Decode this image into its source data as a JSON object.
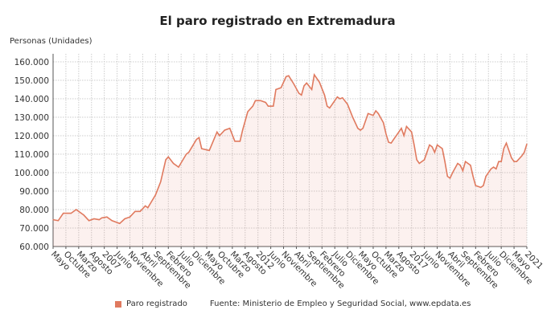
{
  "chart_data": {
    "type": "area",
    "title": "El paro registrado en Extremadura",
    "ylabel": "Personas (Unidades)",
    "xlabel": "",
    "ylim": [
      60000,
      160000
    ],
    "yticks": [
      "60.000",
      "70.000",
      "80.000",
      "90.000",
      "100.000",
      "110.000",
      "120.000",
      "130.000",
      "140.000",
      "150.000",
      "160.000"
    ],
    "xlim": [
      "2005-05",
      "2020-10"
    ],
    "xticks": [
      "Mayo",
      "Octubre",
      "Marzo",
      "Agosto",
      "2007",
      "Junio",
      "Noviembre",
      "Abril",
      "Septiembre",
      "Febrero",
      "Julio",
      "Diciembre",
      "Mayo",
      "Octubre",
      "Marzo",
      "Agosto",
      "2012",
      "Junio",
      "Noviembre",
      "Abril",
      "Septiembre",
      "Febrero",
      "Julio",
      "Diciembre",
      "Mayo",
      "Octubre",
      "Marzo",
      "Agosto",
      "2017",
      "Junio",
      "Noviembre",
      "Abril",
      "Septiembre",
      "Febrero",
      "Julio",
      "Diciembre",
      "Mayo",
      "2021"
    ],
    "grid": true,
    "legend_position": "bottom",
    "series": [
      {
        "name": "Paro registrado",
        "color": "#e07a5f",
        "points": [
          [
            "2005-05",
            74500
          ],
          [
            "2005-07",
            74000
          ],
          [
            "2005-09",
            78000
          ],
          [
            "2005-12",
            78000
          ],
          [
            "2006-02",
            80000
          ],
          [
            "2006-05",
            77000
          ],
          [
            "2006-07",
            74000
          ],
          [
            "2006-09",
            75000
          ],
          [
            "2006-11",
            74500
          ],
          [
            "2006-12",
            75500
          ],
          [
            "2007-02",
            76000
          ],
          [
            "2007-04",
            74000
          ],
          [
            "2007-07",
            72500
          ],
          [
            "2007-09",
            75000
          ],
          [
            "2007-11",
            76000
          ],
          [
            "2008-01",
            79000
          ],
          [
            "2008-03",
            79000
          ],
          [
            "2008-05",
            82000
          ],
          [
            "2008-06",
            81000
          ],
          [
            "2008-09",
            88000
          ],
          [
            "2008-11",
            95000
          ],
          [
            "2009-01",
            107000
          ],
          [
            "2009-02",
            108500
          ],
          [
            "2009-04",
            105000
          ],
          [
            "2009-06",
            103000
          ],
          [
            "2009-09",
            110000
          ],
          [
            "2009-10",
            111000
          ],
          [
            "2010-01",
            118000
          ],
          [
            "2010-02",
            119000
          ],
          [
            "2010-03",
            113000
          ],
          [
            "2010-06",
            112000
          ],
          [
            "2010-09",
            122000
          ],
          [
            "2010-10",
            120000
          ],
          [
            "2010-12",
            123000
          ],
          [
            "2011-02",
            124000
          ],
          [
            "2011-04",
            117000
          ],
          [
            "2011-06",
            117000
          ],
          [
            "2011-07",
            123000
          ],
          [
            "2011-09",
            133000
          ],
          [
            "2011-11",
            136000
          ],
          [
            "2011-12",
            139000
          ],
          [
            "2012-02",
            139000
          ],
          [
            "2012-04",
            138000
          ],
          [
            "2012-05",
            136000
          ],
          [
            "2012-07",
            136000
          ],
          [
            "2012-08",
            145000
          ],
          [
            "2012-10",
            146000
          ],
          [
            "2012-12",
            152000
          ],
          [
            "2013-01",
            152500
          ],
          [
            "2013-03",
            148000
          ],
          [
            "2013-05",
            143000
          ],
          [
            "2013-06",
            142000
          ],
          [
            "2013-07",
            147000
          ],
          [
            "2013-08",
            148500
          ],
          [
            "2013-10",
            145000
          ],
          [
            "2013-11",
            153000
          ],
          [
            "2014-01",
            149000
          ],
          [
            "2014-03",
            142000
          ],
          [
            "2014-04",
            136000
          ],
          [
            "2014-05",
            135000
          ],
          [
            "2014-06",
            137000
          ],
          [
            "2014-08",
            141000
          ],
          [
            "2014-09",
            140000
          ],
          [
            "2014-10",
            140500
          ],
          [
            "2014-12",
            137000
          ],
          [
            "2015-02",
            130000
          ],
          [
            "2015-04",
            124000
          ],
          [
            "2015-05",
            123000
          ],
          [
            "2015-06",
            124000
          ],
          [
            "2015-07",
            128000
          ],
          [
            "2015-08",
            132000
          ],
          [
            "2015-10",
            131000
          ],
          [
            "2015-11",
            133500
          ],
          [
            "2015-12",
            132000
          ],
          [
            "2016-02",
            127000
          ],
          [
            "2016-03",
            121000
          ],
          [
            "2016-04",
            116500
          ],
          [
            "2016-05",
            116000
          ],
          [
            "2016-06",
            118000
          ],
          [
            "2016-08",
            122000
          ],
          [
            "2016-09",
            124000
          ],
          [
            "2016-10",
            120000
          ],
          [
            "2016-11",
            125000
          ],
          [
            "2017-01",
            122000
          ],
          [
            "2017-02",
            115000
          ],
          [
            "2017-03",
            107000
          ],
          [
            "2017-04",
            105000
          ],
          [
            "2017-06",
            107000
          ],
          [
            "2017-07",
            111000
          ],
          [
            "2017-08",
            115000
          ],
          [
            "2017-09",
            114000
          ],
          [
            "2017-10",
            111000
          ],
          [
            "2017-11",
            115000
          ],
          [
            "2018-01",
            113000
          ],
          [
            "2018-02",
            106000
          ],
          [
            "2018-03",
            98000
          ],
          [
            "2018-04",
            97000
          ],
          [
            "2018-05",
            100000
          ],
          [
            "2018-07",
            105000
          ],
          [
            "2018-08",
            104000
          ],
          [
            "2018-09",
            101000
          ],
          [
            "2018-10",
            106000
          ],
          [
            "2018-12",
            104000
          ],
          [
            "2019-01",
            98000
          ],
          [
            "2019-02",
            93000
          ],
          [
            "2019-04",
            92000
          ],
          [
            "2019-05",
            93000
          ],
          [
            "2019-06",
            98000
          ],
          [
            "2019-08",
            102000
          ],
          [
            "2019-09",
            103000
          ],
          [
            "2019-10",
            102000
          ],
          [
            "2019-11",
            106000
          ],
          [
            "2019-12",
            106000
          ],
          [
            "2020-01",
            113000
          ],
          [
            "2020-02",
            116000
          ],
          [
            "2020-03",
            112000
          ],
          [
            "2020-04",
            108000
          ],
          [
            "2020-05",
            106000
          ],
          [
            "2020-06",
            106000
          ],
          [
            "2020-08",
            109000
          ],
          [
            "2020-09",
            111000
          ],
          [
            "2020-10",
            115500
          ]
        ]
      }
    ],
    "source": "Fuente: Ministerio de Empleo y Seguridad Social, www.epdata.es"
  }
}
